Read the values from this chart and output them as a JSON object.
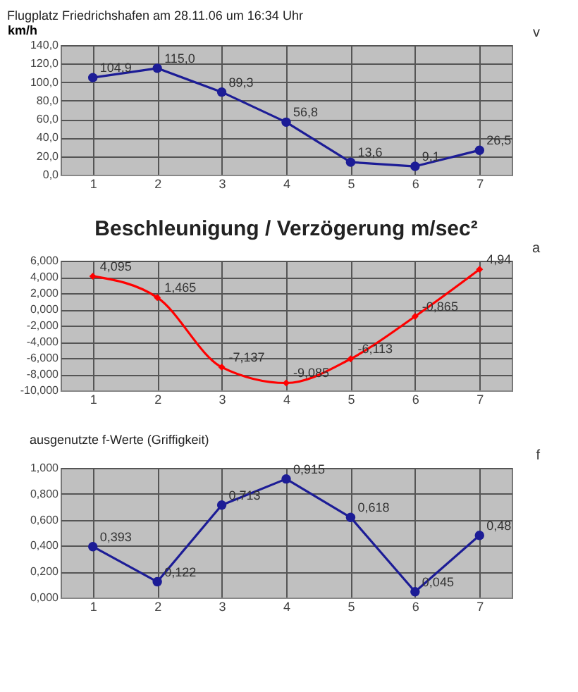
{
  "chart_data": [
    {
      "type": "line",
      "title": "Flugplatz Friedrichshafen  am 28.11.06 um 16:34 Uhr",
      "ylabel": "km/h",
      "annotations": [
        "v"
      ],
      "categories": [
        "1",
        "2",
        "3",
        "4",
        "5",
        "6",
        "7"
      ],
      "series": [
        {
          "color": "#1c1c96",
          "values": [
            104.9,
            115.0,
            89.3,
            56.8,
            13.6,
            9.1,
            26.5
          ],
          "value_labels": [
            "104,9",
            "115,0",
            "89,3",
            "56,8",
            "13,6",
            "9,1",
            "26,5"
          ]
        }
      ],
      "ylim": [
        0,
        140
      ],
      "yticks": [
        {
          "value": 0,
          "label": "0,0"
        },
        {
          "value": 20,
          "label": "20,0"
        },
        {
          "value": 40,
          "label": "40,0"
        },
        {
          "value": 60,
          "label": "60,0"
        },
        {
          "value": 80,
          "label": "80,0"
        },
        {
          "value": 100,
          "label": "100,0"
        },
        {
          "value": 120,
          "label": "120,0"
        },
        {
          "value": 140,
          "label": "140,0"
        }
      ],
      "grid": true,
      "marker": "circle",
      "line_style": "solid"
    },
    {
      "type": "line",
      "title": "Beschleunigung / Verzögerung  m/sec²",
      "annotations": [
        "a"
      ],
      "categories": [
        "1",
        "2",
        "3",
        "4",
        "5",
        "6",
        "7"
      ],
      "series": [
        {
          "color": "#ff0000",
          "values": [
            4.095,
            1.465,
            -7.137,
            -9.085,
            -6.113,
            -0.865,
            4.94
          ],
          "value_labels": [
            "4,095",
            "1,465",
            "-7,137",
            "-9,085",
            "-6,113",
            "-0,865",
            "4,94"
          ]
        }
      ],
      "ylim": [
        -10,
        6
      ],
      "yticks": [
        {
          "value": -10,
          "label": "-10,000"
        },
        {
          "value": -8,
          "label": "-8,000"
        },
        {
          "value": -6,
          "label": "-6,000"
        },
        {
          "value": -4,
          "label": "-4,000"
        },
        {
          "value": -2,
          "label": "-2,000"
        },
        {
          "value": 0,
          "label": "0,000"
        },
        {
          "value": 2,
          "label": "2,000"
        },
        {
          "value": 4,
          "label": "4,000"
        },
        {
          "value": 6,
          "label": "6,000"
        }
      ],
      "grid": true,
      "marker": "diamond",
      "line_style": "solid"
    },
    {
      "type": "line",
      "title": "ausgenutzte f-Werte (Griffigkeit)",
      "annotations": [
        "f"
      ],
      "categories": [
        "1",
        "2",
        "3",
        "4",
        "5",
        "6",
        "7"
      ],
      "series": [
        {
          "color": "#1c1c96",
          "values": [
            0.393,
            0.122,
            0.713,
            0.915,
            0.618,
            0.045,
            0.48
          ],
          "value_labels": [
            "0,393",
            "0,122",
            "0,713",
            "0,915",
            "0,618",
            "0,045",
            "0,48"
          ]
        }
      ],
      "ylim": [
        0,
        1
      ],
      "yticks": [
        {
          "value": 0,
          "label": "0,000"
        },
        {
          "value": 0.2,
          "label": "0,200"
        },
        {
          "value": 0.4,
          "label": "0,400"
        },
        {
          "value": 0.6,
          "label": "0,600"
        },
        {
          "value": 0.8,
          "label": "0,800"
        },
        {
          "value": 1,
          "label": "1,000"
        }
      ],
      "grid": true,
      "marker": "circle",
      "line_style": "solid"
    }
  ]
}
